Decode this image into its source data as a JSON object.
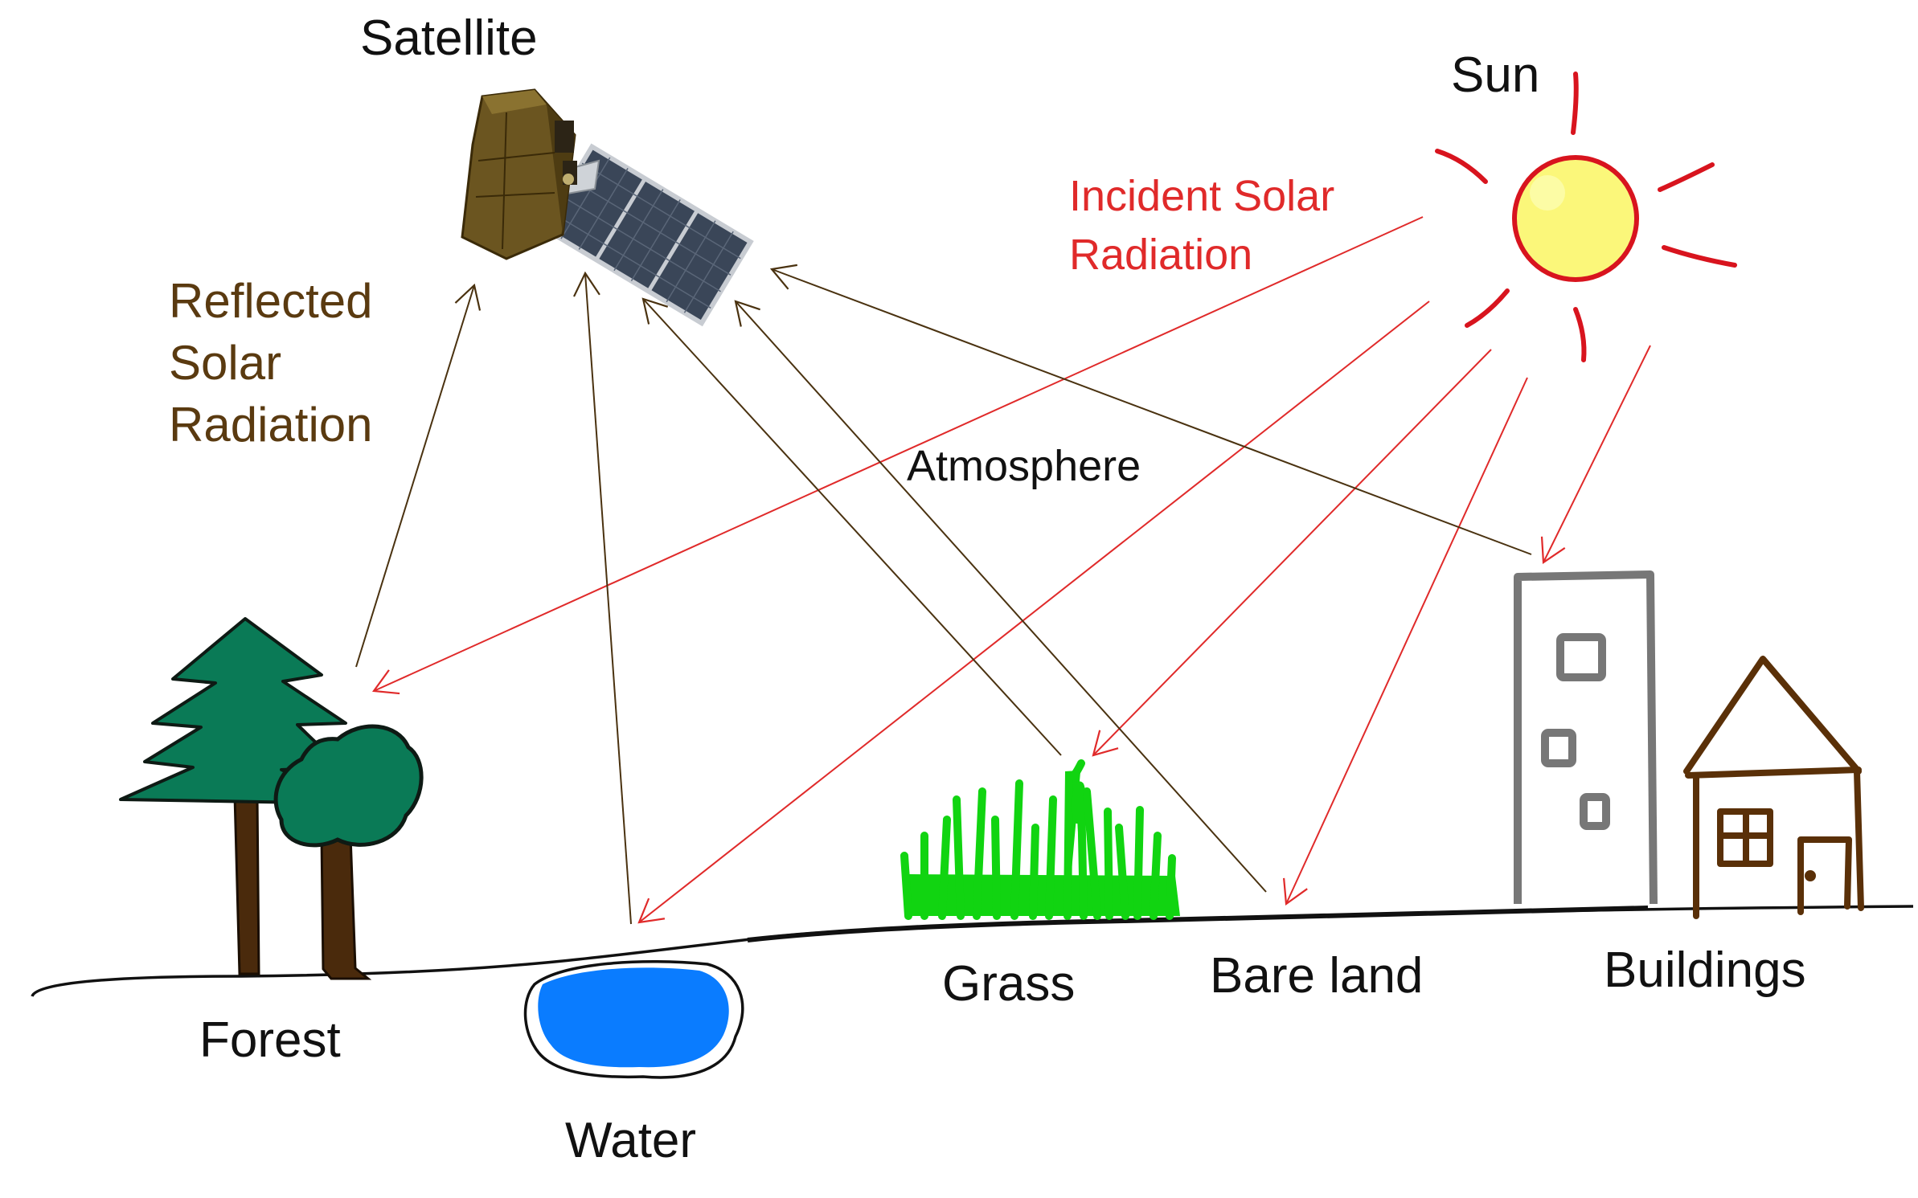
{
  "labels": {
    "satellite": "Satellite",
    "sun": "Sun",
    "incident_line1": "Incident Solar",
    "incident_line2": "Radiation",
    "reflected_line1": "Reflected",
    "reflected_line2": "Solar",
    "reflected_line3": "Radiation",
    "atmosphere": "Atmosphere",
    "forest": "Forest",
    "water": "Water",
    "grass": "Grass",
    "bare_land": "Bare land",
    "buildings": "Buildings"
  },
  "colors": {
    "incident": "#e02a2a",
    "reflected": "#4a3210",
    "sun_fill": "#fbf77a",
    "sun_ring": "#d8141e",
    "tree": "#0a7a56",
    "trunk": "#4a2a0c",
    "water": "#0a7cff",
    "grass": "#11d411",
    "building": "#777777",
    "house": "#5a3008"
  }
}
